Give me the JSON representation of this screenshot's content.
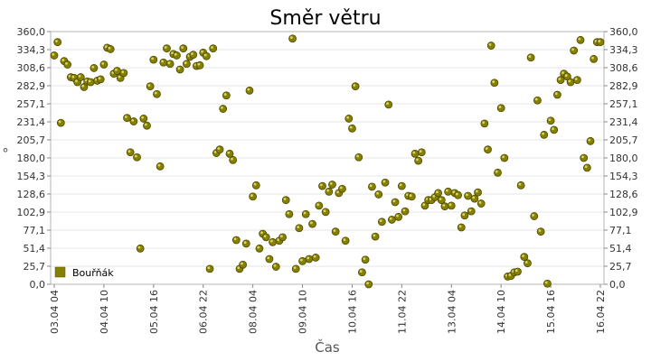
{
  "chart_data": {
    "type": "scatter",
    "title": "Směr větru",
    "xlabel": "Čas",
    "ylabel": "°",
    "ylim": [
      0,
      360
    ],
    "y_ticks": [
      "0,0",
      "25,7",
      "51,4",
      "77,1",
      "102,9",
      "128,6",
      "154,3",
      "180,0",
      "205,7",
      "231,4",
      "257,1",
      "282,9",
      "308,6",
      "334,3",
      "360,0"
    ],
    "x_ticks": [
      "03.04 04",
      "04.04 10",
      "05.04 16",
      "06.04 22",
      "08.04 04",
      "09.04 10",
      "10.04 16",
      "11.04 22",
      "13.04 04",
      "14.04 10",
      "15.04 16",
      "16.04 22"
    ],
    "grid": true,
    "legend_position": "bottom-left",
    "colors": {
      "marker": "#858000",
      "grid": "#e6e6e6",
      "frame": "#b4b4b4"
    },
    "series": [
      {
        "name": "Bouřňák",
        "points": [
          [
            0.0,
            326
          ],
          [
            0.2,
            345
          ],
          [
            0.4,
            230
          ],
          [
            0.6,
            318
          ],
          [
            0.8,
            313
          ],
          [
            1.0,
            295
          ],
          [
            1.2,
            294
          ],
          [
            1.4,
            288
          ],
          [
            1.6,
            295
          ],
          [
            1.8,
            281
          ],
          [
            2.0,
            289
          ],
          [
            2.2,
            288
          ],
          [
            2.4,
            308
          ],
          [
            2.6,
            290
          ],
          [
            2.8,
            292
          ],
          [
            3.0,
            313
          ],
          [
            3.2,
            337
          ],
          [
            3.4,
            335
          ],
          [
            3.6,
            300
          ],
          [
            3.8,
            304
          ],
          [
            4.0,
            294
          ],
          [
            4.2,
            301
          ],
          [
            4.4,
            237
          ],
          [
            4.6,
            188
          ],
          [
            4.8,
            232
          ],
          [
            5.0,
            181
          ],
          [
            5.2,
            51
          ],
          [
            5.4,
            236
          ],
          [
            5.6,
            226
          ],
          [
            5.8,
            282
          ],
          [
            6.0,
            320
          ],
          [
            6.2,
            271
          ],
          [
            6.4,
            168
          ],
          [
            6.6,
            316
          ],
          [
            6.8,
            336
          ],
          [
            7.0,
            314
          ],
          [
            7.2,
            328
          ],
          [
            7.4,
            326
          ],
          [
            7.6,
            306
          ],
          [
            7.8,
            336
          ],
          [
            8.0,
            314
          ],
          [
            8.2,
            324
          ],
          [
            8.4,
            327
          ],
          [
            8.6,
            311
          ],
          [
            8.8,
            312
          ],
          [
            9.0,
            330
          ],
          [
            9.2,
            325
          ],
          [
            9.4,
            22
          ],
          [
            9.6,
            336
          ],
          [
            9.8,
            187
          ],
          [
            10.0,
            192
          ],
          [
            10.2,
            250
          ],
          [
            10.4,
            269
          ],
          [
            10.6,
            186
          ],
          [
            10.8,
            177
          ],
          [
            11.0,
            63
          ],
          [
            11.2,
            22
          ],
          [
            11.4,
            28
          ],
          [
            11.6,
            58
          ],
          [
            11.8,
            276
          ],
          [
            12.0,
            125
          ],
          [
            12.2,
            141
          ],
          [
            12.4,
            51
          ],
          [
            12.6,
            72
          ],
          [
            12.8,
            67
          ],
          [
            13.0,
            36
          ],
          [
            13.2,
            60
          ],
          [
            13.4,
            25
          ],
          [
            13.6,
            62
          ],
          [
            13.8,
            67
          ],
          [
            14.0,
            120
          ],
          [
            14.2,
            100
          ],
          [
            14.4,
            350
          ],
          [
            14.6,
            22
          ],
          [
            14.8,
            80
          ],
          [
            15.0,
            33
          ],
          [
            15.2,
            100
          ],
          [
            15.4,
            36
          ],
          [
            15.6,
            86
          ],
          [
            15.8,
            38
          ],
          [
            16.0,
            112
          ],
          [
            16.2,
            140
          ],
          [
            16.4,
            103
          ],
          [
            16.6,
            132
          ],
          [
            16.8,
            142
          ],
          [
            17.0,
            75
          ],
          [
            17.2,
            130
          ],
          [
            17.4,
            136
          ],
          [
            17.6,
            62
          ],
          [
            17.8,
            236
          ],
          [
            18.0,
            222
          ],
          [
            18.2,
            282
          ],
          [
            18.4,
            181
          ],
          [
            18.6,
            17
          ],
          [
            18.8,
            35
          ],
          [
            19.0,
            0
          ],
          [
            19.2,
            139
          ],
          [
            19.4,
            68
          ],
          [
            19.6,
            128
          ],
          [
            19.8,
            89
          ],
          [
            20.0,
            145
          ],
          [
            20.2,
            256
          ],
          [
            20.4,
            92
          ],
          [
            20.6,
            117
          ],
          [
            20.8,
            96
          ],
          [
            21.0,
            140
          ],
          [
            21.2,
            104
          ],
          [
            21.4,
            126
          ],
          [
            21.6,
            125
          ],
          [
            21.8,
            186
          ],
          [
            22.0,
            176
          ],
          [
            22.2,
            188
          ],
          [
            22.4,
            112
          ],
          [
            22.6,
            120
          ],
          [
            22.8,
            120
          ],
          [
            23.0,
            124
          ],
          [
            23.2,
            130
          ],
          [
            23.4,
            120
          ],
          [
            23.6,
            111
          ],
          [
            23.8,
            132
          ],
          [
            24.0,
            112
          ],
          [
            24.2,
            130
          ],
          [
            24.4,
            127
          ],
          [
            24.6,
            81
          ],
          [
            24.8,
            98
          ],
          [
            25.0,
            126
          ],
          [
            25.2,
            104
          ],
          [
            25.4,
            122
          ],
          [
            25.6,
            131
          ],
          [
            25.8,
            115
          ],
          [
            26.0,
            229
          ],
          [
            26.2,
            192
          ],
          [
            26.4,
            340
          ],
          [
            26.6,
            287
          ],
          [
            26.8,
            159
          ],
          [
            27.0,
            251
          ],
          [
            27.2,
            180
          ],
          [
            27.4,
            11
          ],
          [
            27.6,
            12
          ],
          [
            27.8,
            17
          ],
          [
            28.0,
            18
          ],
          [
            28.2,
            141
          ],
          [
            28.4,
            39
          ],
          [
            28.6,
            30
          ],
          [
            28.8,
            323
          ],
          [
            29.0,
            97
          ],
          [
            29.2,
            262
          ],
          [
            29.4,
            75
          ],
          [
            29.6,
            213
          ],
          [
            29.8,
            1
          ],
          [
            30.0,
            233
          ],
          [
            30.2,
            220
          ],
          [
            30.4,
            270
          ],
          [
            30.6,
            291
          ],
          [
            30.8,
            300
          ],
          [
            31.0,
            296
          ],
          [
            31.2,
            288
          ],
          [
            31.4,
            333
          ],
          [
            31.6,
            291
          ],
          [
            31.8,
            348
          ],
          [
            32.0,
            180
          ],
          [
            32.2,
            166
          ],
          [
            32.4,
            204
          ],
          [
            32.6,
            321
          ],
          [
            32.8,
            345
          ],
          [
            33.0,
            345
          ]
        ]
      }
    ]
  }
}
